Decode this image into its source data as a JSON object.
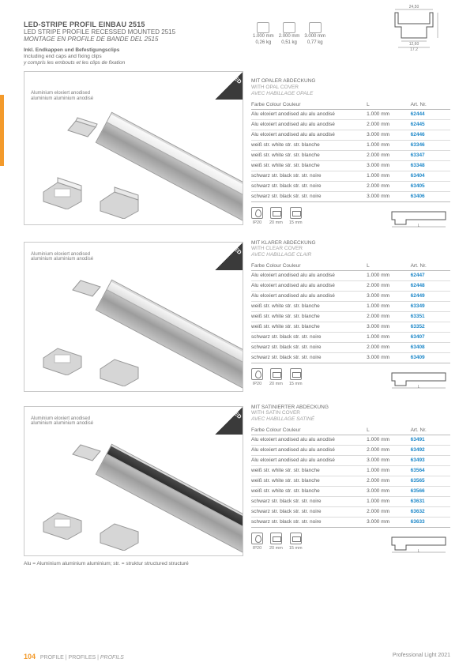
{
  "header": {
    "title_de": "LED-STRIPE PROFIL EINBAU 2515",
    "title_en": "LED STRIPE PROFILE RECESSED MOUNTED 2515",
    "title_fr": "MONTAGE EN PROFILE DE BANDE DEL 2515",
    "sub1": "Inkl. Endkappen und Befestigungsclips",
    "sub2": "Including end caps and fixing clips",
    "sub3": "y compris les embouts et les clips de fixation"
  },
  "weights": [
    {
      "l": "1.000 mm",
      "w": "0,26 kg"
    },
    {
      "l": "2.000 mm",
      "w": "0,51 kg"
    },
    {
      "l": "3.000 mm",
      "w": "0,77 kg"
    }
  ],
  "tech": {
    "top": "24,50",
    "mid": "12,60",
    "bot": "17,2"
  },
  "image_annotation": "Aluminium eloxiert anodised aluminium aluminium anodisé",
  "table_header": {
    "c1": "Farbe Colour Couleur",
    "c2": "L",
    "c3": "Art. Nr."
  },
  "row_labels": {
    "alu": "Alu eloxiert anodised alu alu anodisé",
    "white": "weiß str. white str. str. blanche",
    "black": "schwarz str. black str. str. noire"
  },
  "lengths": [
    "1.000 mm",
    "2.000 mm",
    "3.000 mm"
  ],
  "icons": {
    "ip": "IP20",
    "w1": "20 mm",
    "w2": "15 mm"
  },
  "sections": [
    {
      "h1": "MIT OPALER ABDECKUNG",
      "h2": "WITH OPAL COVER",
      "h3": "AVEC HABILLAGE OPALE",
      "arts": {
        "alu": [
          "62444",
          "62445",
          "62446"
        ],
        "white": [
          "63346",
          "63347",
          "63348"
        ],
        "black": [
          "63404",
          "63405",
          "63406"
        ]
      }
    },
    {
      "h1": "MIT KLARER ABDECKUNG",
      "h2": "WITH CLEAR COVER",
      "h3": "AVEC HABILLAGE CLAIR",
      "arts": {
        "alu": [
          "62447",
          "62448",
          "62449"
        ],
        "white": [
          "63349",
          "63351",
          "63352"
        ],
        "black": [
          "63407",
          "63408",
          "63409"
        ]
      }
    },
    {
      "h1": "MIT SATINIERTER ABDECKUNG",
      "h2": "WITH SATIN COVER",
      "h3": "AVEC HABILLAGE SATINÉ",
      "arts": {
        "alu": [
          "63491",
          "63492",
          "63493"
        ],
        "white": [
          "63564",
          "63565",
          "63566"
        ],
        "black": [
          "63631",
          "63632",
          "63633"
        ]
      }
    }
  ],
  "footnote": "Alu = Aluminium aluminium aluminium; str. = struktur structured structuré",
  "footer": {
    "page": "104",
    "crumb_de": "PROFILE",
    "crumb_en": "PROFILES",
    "crumb_fr": "PROFILS",
    "right": "Professional Light 2021"
  },
  "colors": {
    "accent": "#1e88c9",
    "orange": "#f39a2b"
  }
}
